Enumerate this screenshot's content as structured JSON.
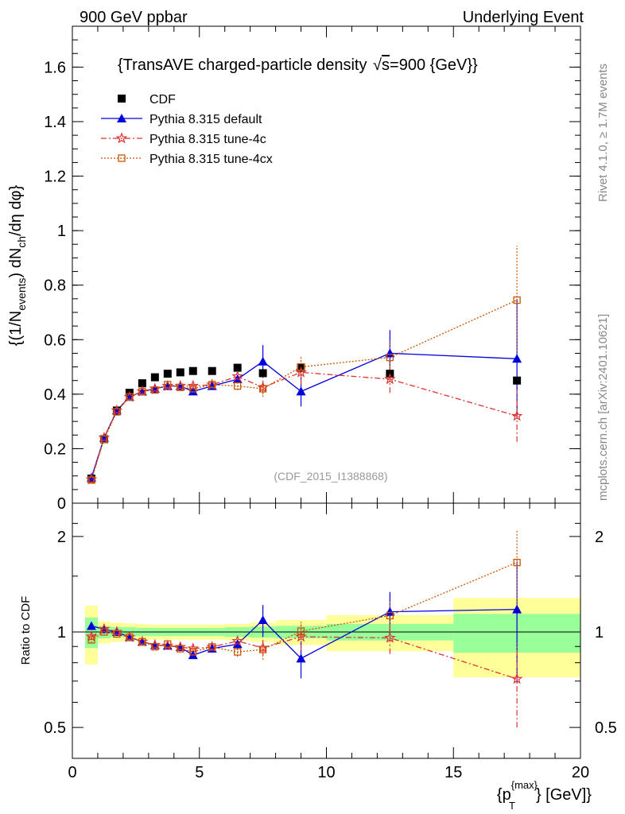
{
  "header": {
    "energy_label": "900 GeV ppbar",
    "process_label": "Underlying Event"
  },
  "side_labels": {
    "rivet": "Rivet 4.1.0, ≥ 1.7M events",
    "site": "mcplots.cern.ch [arXiv:2401.10621]"
  },
  "colors": {
    "cdf": "#000000",
    "default": "#0000dd",
    "tune4c": "#dd3333",
    "tune4cx": "#cc5500",
    "band_inner": "#99ff99",
    "band_outer": "#ffff99"
  },
  "chart_data": {
    "type": "line",
    "title": "{TransAVE charged-particle density √s=900 {GeV}}",
    "title_parts": {
      "main": "{TransAVE charged-particle density ",
      "root": "s",
      "tail": "=900 {GeV}}"
    },
    "analysis_id": "(CDF_2015_I1388868)",
    "xlabel": {
      "main": "{p",
      "sup": "{max}",
      "sub": "T",
      "tail": "} [GeV]}"
    },
    "ylabel": {
      "part1": "{(1/N",
      "sub1": "events",
      "part2": ") dN",
      "sub2": "ch",
      "part3": "/dη dφ}"
    },
    "ratio_ylabel": "Ratio to CDF",
    "xlim": [
      0,
      20
    ],
    "ylim": [
      0,
      1.75
    ],
    "ratio_ylim": [
      0.42,
      2.3
    ],
    "x_ticks": [
      "0",
      "5",
      "10",
      "15",
      "20"
    ],
    "y_ticks": [
      "0",
      "0.2",
      "0.4",
      "0.6",
      "0.8",
      "1",
      "1.2",
      "1.4",
      "1.6"
    ],
    "ratio_ticks": [
      "0.5",
      "1",
      "2"
    ],
    "legend": [
      {
        "key": "cdf",
        "label": "CDF"
      },
      {
        "key": "default",
        "label": "Pythia 8.315 default"
      },
      {
        "key": "tune4c",
        "label": "Pythia 8.315 tune-4c"
      },
      {
        "key": "tune4cx",
        "label": "Pythia 8.315 tune-4cx"
      }
    ],
    "x": [
      0.75,
      1.25,
      1.75,
      2.25,
      2.75,
      3.25,
      3.75,
      4.25,
      4.75,
      5.5,
      6.5,
      7.5,
      9.0,
      12.5,
      17.5
    ],
    "bin_edges": [
      0.5,
      1.0,
      1.5,
      2.0,
      2.5,
      3.0,
      3.5,
      4.0,
      4.5,
      5.0,
      6.0,
      7.0,
      8.0,
      10.0,
      15.0,
      20.0
    ],
    "series": [
      {
        "key": "cdf",
        "name": "CDF",
        "values": [
          0.09,
          0.235,
          0.34,
          0.405,
          0.44,
          0.462,
          0.475,
          0.48,
          0.485,
          0.485,
          0.497,
          0.477,
          0.497,
          0.475,
          0.45
        ]
      },
      {
        "key": "default",
        "name": "Pythia 8.315 default",
        "values": [
          0.094,
          0.24,
          0.34,
          0.39,
          0.41,
          0.42,
          0.43,
          0.43,
          0.41,
          0.43,
          0.455,
          0.52,
          0.41,
          0.55,
          0.53
        ],
        "errors": [
          0.002,
          0.003,
          0.004,
          0.004,
          0.005,
          0.005,
          0.006,
          0.007,
          0.008,
          0.009,
          0.015,
          0.06,
          0.055,
          0.085,
          0.22
        ]
      },
      {
        "key": "tune4c",
        "name": "Pythia 8.315 tune-4c",
        "values": [
          0.087,
          0.24,
          0.34,
          0.39,
          0.41,
          0.42,
          0.43,
          0.43,
          0.43,
          0.435,
          0.465,
          0.425,
          0.48,
          0.455,
          0.32
        ],
        "errors": [
          0.002,
          0.003,
          0.004,
          0.004,
          0.005,
          0.005,
          0.006,
          0.007,
          0.008,
          0.009,
          0.015,
          0.025,
          0.045,
          0.05,
          0.095
        ]
      },
      {
        "key": "tune4cx",
        "name": "Pythia 8.315 tune-4cx",
        "values": [
          0.085,
          0.235,
          0.335,
          0.39,
          0.41,
          0.415,
          0.435,
          0.425,
          0.42,
          0.435,
          0.43,
          0.42,
          0.5,
          0.535,
          0.745
        ],
        "errors": [
          0.002,
          0.003,
          0.004,
          0.004,
          0.005,
          0.005,
          0.006,
          0.007,
          0.008,
          0.009,
          0.015,
          0.03,
          0.04,
          0.06,
          0.2
        ]
      }
    ],
    "ratio_band_inner": [
      0.11,
      0.045,
      0.035,
      0.035,
      0.03,
      0.03,
      0.03,
      0.03,
      0.03,
      0.03,
      0.035,
      0.04,
      0.045,
      0.06,
      0.14
    ],
    "ratio_band_outer": [
      0.21,
      0.08,
      0.07,
      0.065,
      0.06,
      0.055,
      0.055,
      0.055,
      0.055,
      0.055,
      0.06,
      0.07,
      0.09,
      0.13,
      0.28
    ]
  }
}
